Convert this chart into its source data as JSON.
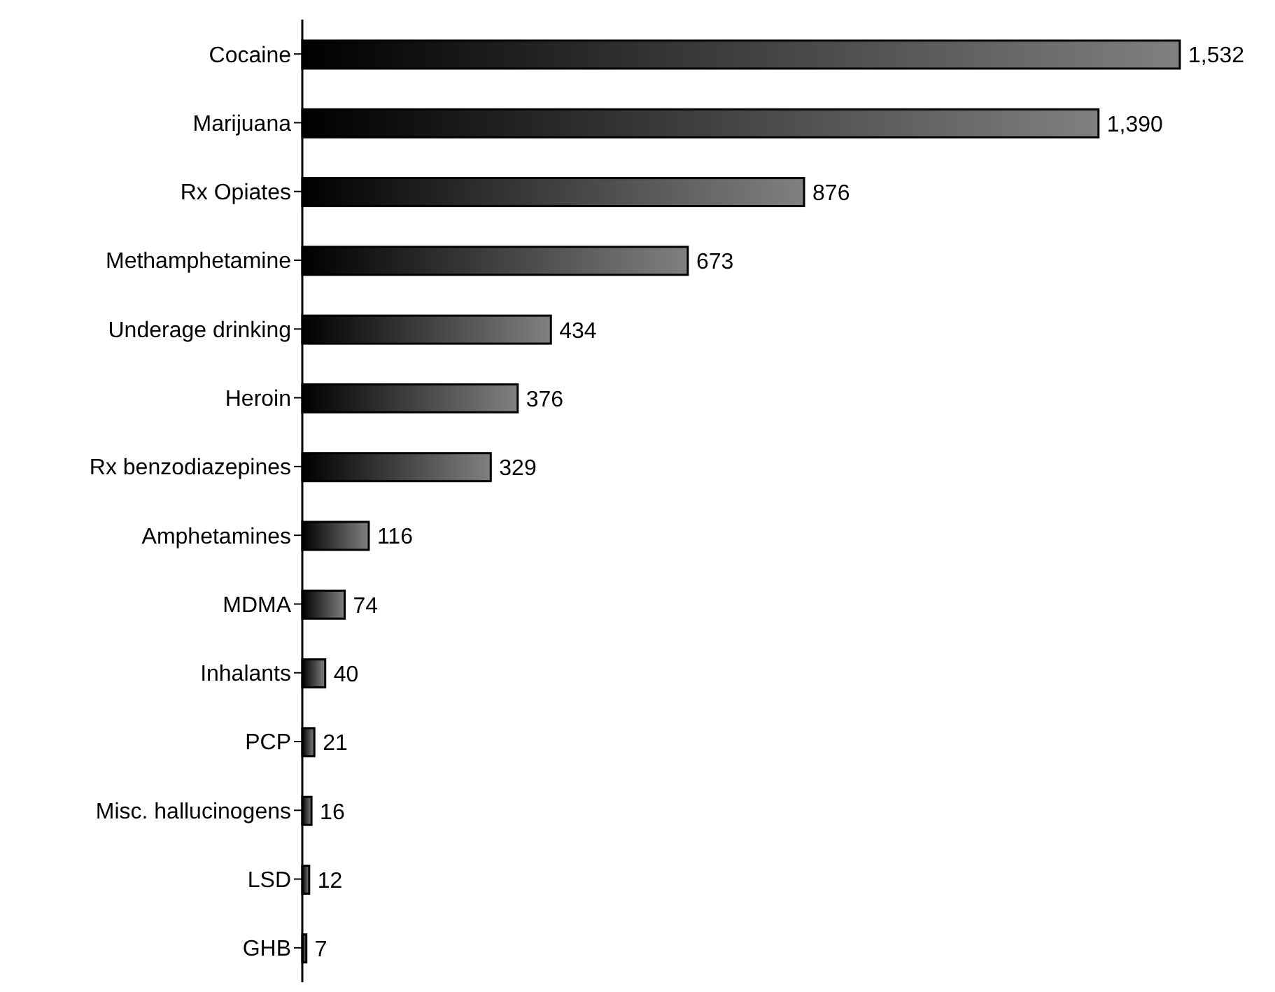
{
  "chart_data": {
    "type": "bar",
    "orientation": "horizontal",
    "categories": [
      "Cocaine",
      "Marijuana",
      "Rx Opiates",
      "Methamphetamine",
      "Underage drinking",
      "Heroin",
      "Rx benzodiazepines",
      "Amphetamines",
      "MDMA",
      "Inhalants",
      "PCP",
      "Misc. hallucinogens",
      "LSD",
      "GHB"
    ],
    "values": [
      1532,
      1390,
      876,
      673,
      434,
      376,
      329,
      116,
      74,
      40,
      21,
      16,
      12,
      7
    ],
    "value_labels": [
      "1,532",
      "1,390",
      "876",
      "673",
      "434",
      "376",
      "329",
      "116",
      "74",
      "40",
      "21",
      "16",
      "12",
      "7"
    ],
    "color": "#808080",
    "grid": false,
    "legend": false
  }
}
